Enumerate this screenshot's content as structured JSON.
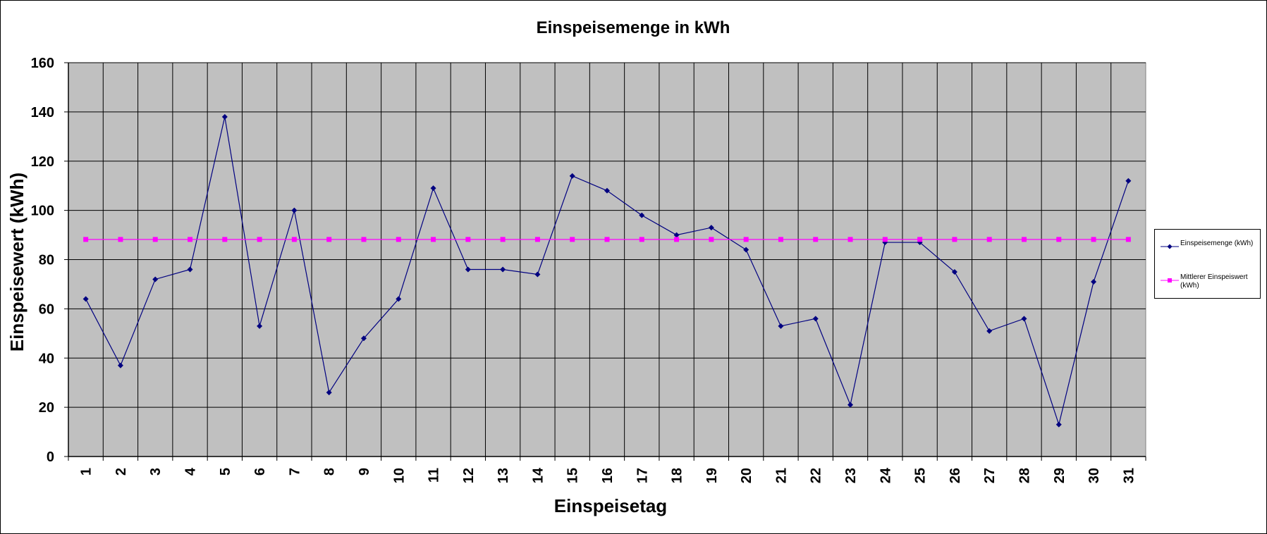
{
  "chart_data": {
    "type": "line",
    "title": "Einspeisemenge in kWh",
    "xlabel": "Einspeisetag",
    "ylabel": "Einspeisewert  (kWh)",
    "ylim": [
      0,
      160
    ],
    "yticks": [
      "0",
      "20",
      "40",
      "60",
      "80",
      "100",
      "120",
      "140",
      "160"
    ],
    "categories": [
      "1",
      "2",
      "3",
      "4",
      "5",
      "6",
      "7",
      "8",
      "9",
      "10",
      "11",
      "12",
      "13",
      "14",
      "15",
      "16",
      "17",
      "18",
      "19",
      "20",
      "21",
      "22",
      "23",
      "24",
      "25",
      "26",
      "27",
      "28",
      "29",
      "30",
      "31"
    ],
    "grid": true,
    "legend_position": "right",
    "plot_background": "#c0c0c0",
    "series": [
      {
        "name": "Einspeisemenge (kWh)",
        "color": "#000080",
        "marker": "diamond",
        "values": [
          64,
          37,
          72,
          76,
          138,
          53,
          100,
          26,
          48,
          64,
          109,
          76,
          76,
          74,
          114,
          108,
          98,
          90,
          93,
          84,
          53,
          56,
          21,
          87,
          87,
          75,
          51,
          56,
          13,
          71,
          112
        ]
      },
      {
        "name": "Mittlerer Einspeiswert (kWh)",
        "color": "#ff00ff",
        "marker": "square",
        "values": [
          88.2,
          88.2,
          88.2,
          88.2,
          88.2,
          88.2,
          88.2,
          88.2,
          88.2,
          88.2,
          88.2,
          88.2,
          88.2,
          88.2,
          88.2,
          88.2,
          88.2,
          88.2,
          88.2,
          88.2,
          88.2,
          88.2,
          88.2,
          88.2,
          88.2,
          88.2,
          88.2,
          88.2,
          88.2,
          88.2,
          88.2
        ]
      }
    ]
  }
}
